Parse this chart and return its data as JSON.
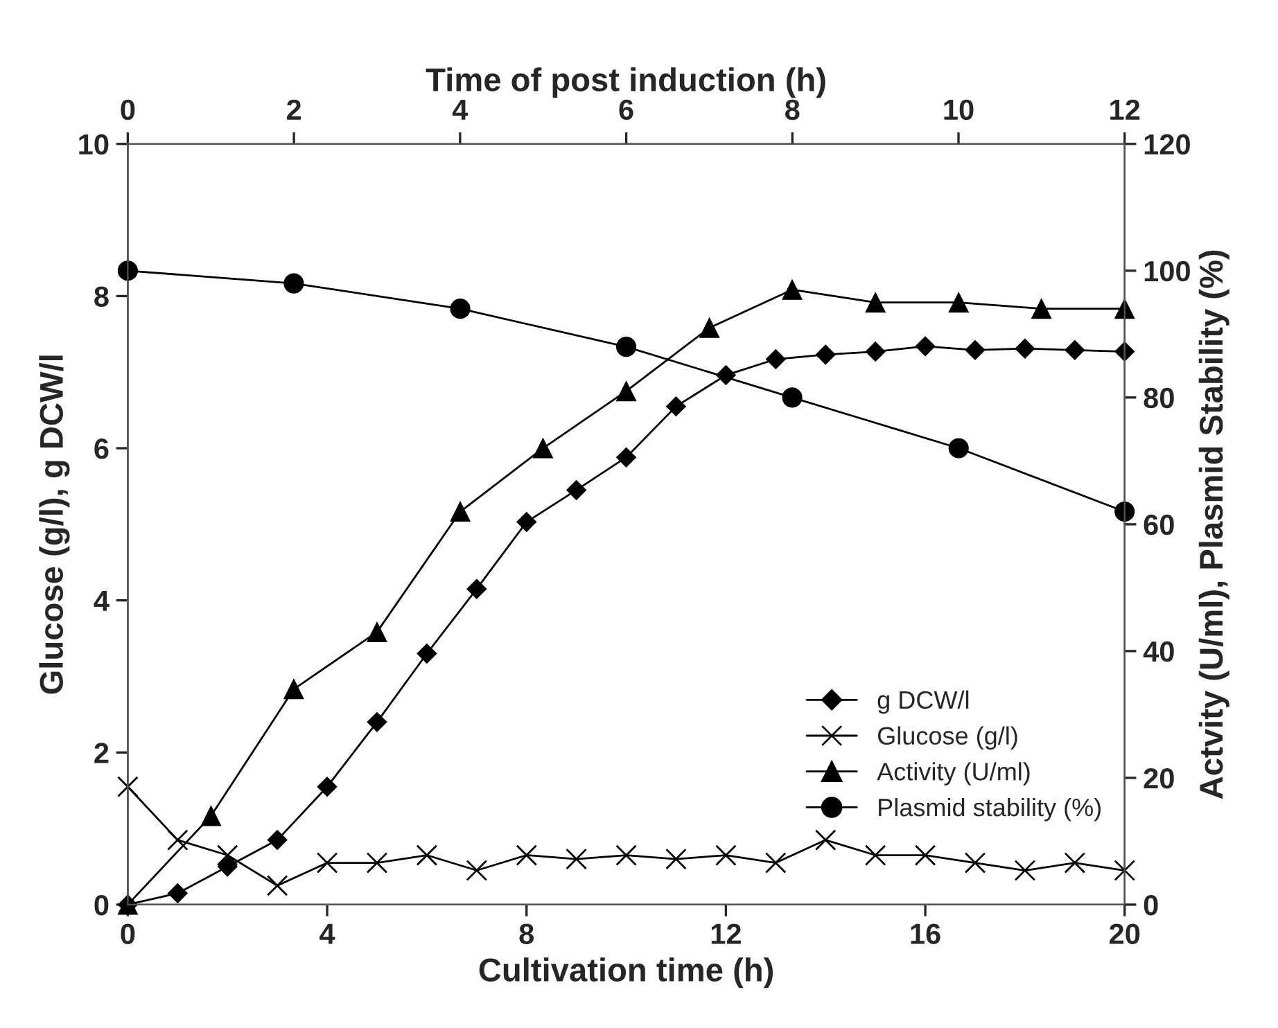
{
  "chart_data": {
    "type": "line",
    "xlabel": "Cultivation time (h)",
    "ylabel": "Glucose (g/l), g DCW/l",
    "y2label": "Actvity (U/ml), Plasmid Stability (%)",
    "x2label": "Time of post induction (h)",
    "xlim": [
      0,
      20
    ],
    "xticks": [
      0,
      4,
      8,
      12,
      16,
      20
    ],
    "ylim": [
      0,
      10
    ],
    "yticks": [
      0,
      2,
      4,
      6,
      8,
      10
    ],
    "y2lim": [
      0,
      120
    ],
    "y2ticks": [
      0,
      20,
      40,
      60,
      80,
      100,
      120
    ],
    "x2lim": [
      0,
      12
    ],
    "x2ticks": [
      0,
      2,
      4,
      6,
      8,
      10,
      12
    ],
    "legend": "bottom right",
    "grid": false,
    "line_style": "solid",
    "series": [
      {
        "name": "g DCW/l",
        "color": "#000000",
        "marker": "diamond",
        "x": [
          0,
          1,
          2,
          3,
          4,
          5,
          6,
          7,
          8,
          9,
          10,
          11,
          12,
          13,
          14,
          15,
          16,
          17,
          18,
          19,
          20
        ],
        "values": [
          0,
          0.15,
          0.5,
          0.85,
          1.55,
          2.4,
          3.3,
          4.15,
          5.03,
          5.45,
          5.88,
          6.55,
          6.96,
          7.17,
          7.23,
          7.27,
          7.34,
          7.29,
          7.31,
          7.29,
          7.27
        ]
      },
      {
        "name": "Glucose (g/l)",
        "color": "#000000",
        "marker": "cross",
        "x": [
          0,
          1,
          2,
          3,
          4,
          5,
          6,
          7,
          8,
          9,
          10,
          11,
          12,
          13,
          14,
          15,
          16,
          17,
          18,
          19,
          20
        ],
        "values": [
          1.55,
          0.85,
          0.65,
          0.25,
          0.55,
          0.55,
          0.65,
          0.45,
          0.65,
          0.6,
          0.65,
          0.6,
          0.65,
          0.55,
          0.85,
          0.65,
          0.65,
          0.55,
          0.45,
          0.55,
          0.45
        ]
      },
      {
        "name": "Activity (U/ml)",
        "color": "#000000",
        "marker": "triangle",
        "axis": "y2",
        "x": [
          0,
          1.67,
          3.33,
          5,
          6.67,
          8.33,
          10,
          11.67,
          13.33,
          15,
          16.67,
          18.33,
          20
        ],
        "values": [
          0,
          14,
          34,
          43,
          62,
          72,
          81,
          91,
          97,
          95,
          95,
          94,
          94
        ]
      },
      {
        "name": "Plasmid stability (%)",
        "color": "#000000",
        "marker": "circle",
        "axis": "y2",
        "x": [
          0,
          3.33,
          6.67,
          10,
          13.33,
          16.67,
          20
        ],
        "values": [
          100,
          98,
          94,
          88,
          80,
          72,
          62
        ]
      }
    ]
  }
}
